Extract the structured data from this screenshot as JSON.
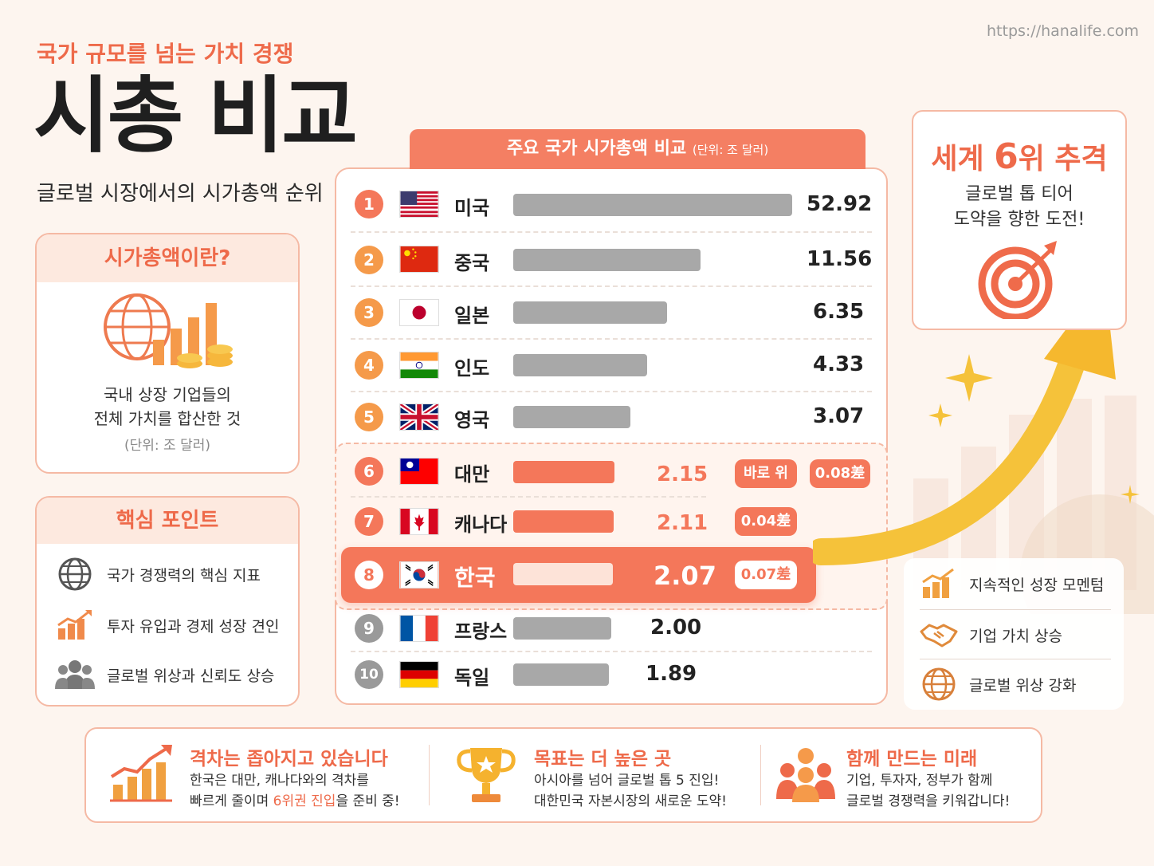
{
  "url": "https://hanalife.com",
  "header": {
    "kicker": "국가 규모를 넘는 가치 경쟁",
    "title": "시총 비교",
    "subtitle": "글로벌 시장에서의 시가총액 순위"
  },
  "definition_card": {
    "title": "시가총액이란?",
    "line1": "국내 상장 기업들의",
    "line2": "전체 가치를 합산한 것",
    "unit": "(단위: 조 달러)"
  },
  "points_card": {
    "title": "핵심 포인트",
    "items": [
      {
        "icon": "globe-icon",
        "label": "국가 경쟁력의 핵심 지표"
      },
      {
        "icon": "growth-chart-icon",
        "label": "투자 유입과 경제 성장 견인"
      },
      {
        "icon": "people-icon",
        "label": "글로벌 위상과 신뢰도 상승"
      }
    ]
  },
  "chart_data": {
    "type": "bar",
    "title": "주요 국가 시가총액 비교",
    "unit": "(단위: 조 달러)",
    "ranks": [
      "1",
      "2",
      "3",
      "4",
      "5",
      "6",
      "7",
      "8",
      "9",
      "10"
    ],
    "categories": [
      "미국",
      "중국",
      "일본",
      "인도",
      "영국",
      "대만",
      "캐나다",
      "한국",
      "프랑스",
      "독일"
    ],
    "values": [
      52.92,
      11.56,
      6.35,
      4.33,
      3.07,
      2.15,
      2.11,
      2.07,
      2.0,
      1.89
    ],
    "value_labels": [
      "52.92",
      "11.56",
      "6.35",
      "4.33",
      "3.07",
      "2.15",
      "2.11",
      "2.07",
      "2.00",
      "1.89"
    ],
    "highlight_index": 7,
    "gap_tags": {
      "taiwan_above": "바로 위",
      "taiwan_gap": "0.08差",
      "canada_gap": "0.04差",
      "korea_gap": "0.07差"
    }
  },
  "goal_card": {
    "prefix": "세계 ",
    "rank": "6",
    "suffix": "위 추격",
    "line1": "글로벌 톱 티어",
    "line2": "도약을 향한 도전!"
  },
  "momentum": {
    "items": [
      {
        "icon": "growth-chart-icon",
        "label": "지속적인 성장 모멘텀"
      },
      {
        "icon": "handshake-icon",
        "label": "기업 가치 상승"
      },
      {
        "icon": "globe-icon",
        "label": "글로벌 위상 강화"
      }
    ]
  },
  "bottom": {
    "sections": [
      {
        "icon": "growth-chart-icon",
        "title": "격차는 좁아지고 있습니다",
        "line1": "한국은 대만, 캐나다와의 격차를",
        "line2_pre": "빠르게 줄이며 ",
        "line2_hl": "6위권 진입",
        "line2_post": "을 준비 중!"
      },
      {
        "icon": "trophy-icon",
        "title": "목표는 더 높은 곳",
        "line1": "아시아를 넘어 글로벌 톱 5 진입!",
        "line2": "대한민국 자본시장의 새로운 도약!"
      },
      {
        "icon": "people-icon",
        "title": "함께 만드는 미래",
        "line1": "기업, 투자자, 정부가 함께",
        "line2": "글로벌 경쟁력을 키워갑니다!"
      }
    ]
  },
  "colors": {
    "accent": "#ee6a4a",
    "bar_gray": "#a8a8a8",
    "bar_highlight": "#f4775a",
    "background": "#fdf5ef"
  }
}
